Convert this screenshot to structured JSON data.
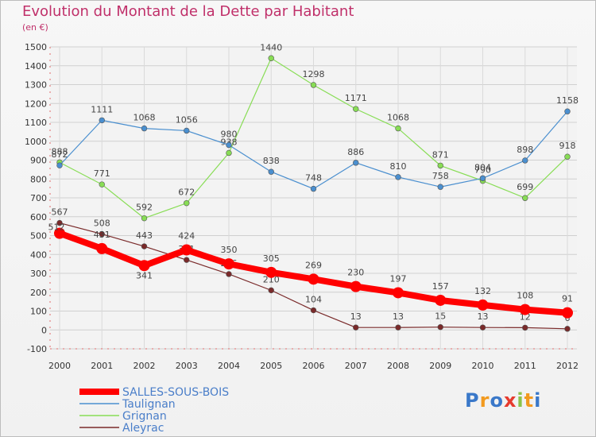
{
  "chart_data": {
    "type": "line",
    "title": "Evolution du Montant de la Dette par Habitant",
    "subtitle": "(en €)",
    "x": [
      "2000",
      "2001",
      "2002",
      "2003",
      "2004",
      "2005",
      "2006",
      "2007",
      "2008",
      "2009",
      "2010",
      "2011",
      "2012"
    ],
    "ylim": [
      -100,
      1500
    ],
    "yticks": [
      -100,
      0,
      100,
      200,
      300,
      400,
      500,
      600,
      700,
      800,
      900,
      1000,
      1100,
      1200,
      1300,
      1400,
      1500
    ],
    "grid": true,
    "legend_position": "bottom-left",
    "series": [
      {
        "name": "SALLES-SOUS-BOIS",
        "color": "#ff0000",
        "values": [
          512,
          431,
          341,
          424,
          350,
          305,
          269,
          230,
          197,
          157,
          132,
          108,
          91
        ]
      },
      {
        "name": "Taulignan",
        "color": "#4a8fcf",
        "values": [
          872,
          1111,
          1068,
          1056,
          980,
          838,
          748,
          886,
          810,
          758,
          804,
          898,
          1158
        ]
      },
      {
        "name": "Grignan",
        "color": "#88dd55",
        "values": [
          888,
          771,
          592,
          672,
          938,
          1440,
          1298,
          1171,
          1068,
          871,
          790,
          699,
          918
        ]
      },
      {
        "name": "Aleyrac",
        "color": "#7a2a2a",
        "values": [
          567,
          508,
          443,
          371,
          296,
          210,
          104,
          13,
          13,
          15,
          13,
          12,
          6
        ]
      }
    ]
  },
  "logo": {
    "text": "Proxiti",
    "colors": [
      "#3a78c9",
      "#f29a1f",
      "#3a78c9",
      "#e63b2e",
      "#8bc34a",
      "#f29a1f",
      "#3a78c9"
    ]
  }
}
